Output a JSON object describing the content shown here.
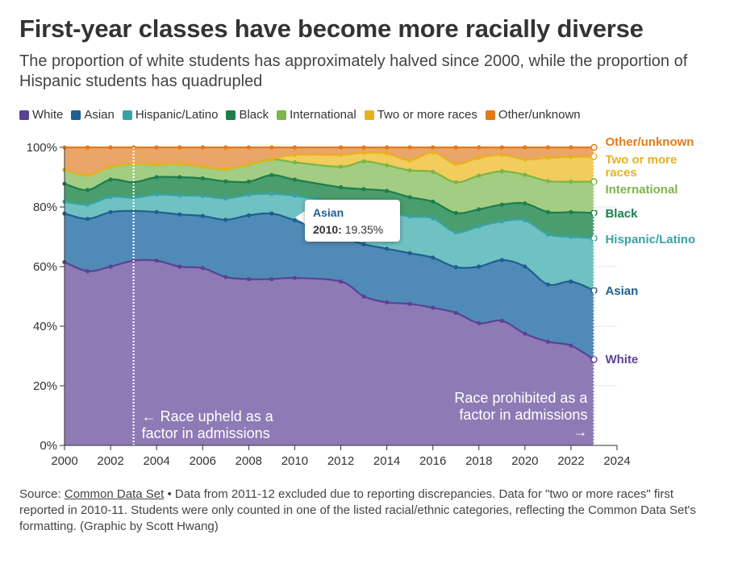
{
  "header": {
    "title": "First-year classes have become more racially diverse",
    "subtitle": "The proportion of white students has approximately halved since 2000, while the proportion of Hispanic students has quadrupled"
  },
  "tooltip": {
    "series": "Asian",
    "year_label": "2010:",
    "value_label": "19.35%"
  },
  "annotations": {
    "left": [
      "← Race upheld as a",
      "factor in admissions"
    ],
    "right": [
      "Race prohibited as a",
      "factor in admissions",
      "→"
    ]
  },
  "source": {
    "prefix": "Source:",
    "link": "Common Data Set",
    "text": "• Data from 2011-12 excluded due to reporting discrepancies. Data for \"two or more races\" first reported in 2010-11. Students were only counted in one of the listed racial/ethnic categories, reflecting the Common Data Set's formatting. (Graphic by Scott Hwang)"
  },
  "chart_data": {
    "type": "area",
    "stacked": true,
    "x": [
      2000,
      2001,
      2002,
      2003,
      2004,
      2005,
      2006,
      2007,
      2008,
      2009,
      2010,
      2012,
      2013,
      2014,
      2015,
      2016,
      2017,
      2018,
      2019,
      2020,
      2021,
      2022,
      2023
    ],
    "xlim": [
      2000,
      2024
    ],
    "xticks": [
      "2000",
      "2002",
      "2004",
      "2006",
      "2008",
      "2010",
      "2012",
      "2014",
      "2016",
      "2018",
      "2020",
      "2022",
      "2024"
    ],
    "ylim": [
      0,
      100
    ],
    "yticks": [
      "0%",
      "20%",
      "40%",
      "60%",
      "80%",
      "100%"
    ],
    "grid": true,
    "legend_position": "top",
    "cumulative_values": true,
    "series": [
      {
        "name": "White",
        "color": "#5b4296",
        "fill": "#8e7ab4",
        "values": [
          61.5,
          58.5,
          60,
          62,
          62,
          60,
          59.5,
          56.5,
          55.8,
          55.8,
          56.2,
          55,
          50,
          48,
          47.5,
          46.2,
          44.5,
          41,
          41.8,
          37.5,
          34.8,
          33.5,
          28.8
        ]
      },
      {
        "name": "Asian",
        "color": "#1f5f91",
        "fill": "#4f8bb6",
        "values": [
          77.8,
          76,
          78.3,
          78.7,
          78.3,
          77.5,
          77,
          75.7,
          77.2,
          77.8,
          75.5,
          70,
          67.5,
          66,
          64.5,
          63,
          59.8,
          60,
          62.2,
          60,
          54,
          55,
          52
        ]
      },
      {
        "name": "Hispanic/Latino",
        "color": "#36a3a8",
        "fill": "#70c1c1",
        "values": [
          81.8,
          80.8,
          83.4,
          83.1,
          84.2,
          83.9,
          83.7,
          82.9,
          84.1,
          84.4,
          83.8,
          81.2,
          79.5,
          78.5,
          76.8,
          76.2,
          71.5,
          73.5,
          75.2,
          75.5,
          70.8,
          70,
          69.5
        ]
      },
      {
        "name": "Black",
        "color": "#1e7d4c",
        "fill": "#4a9e6d",
        "values": [
          87.8,
          85.7,
          89.2,
          88.3,
          90,
          90,
          89.6,
          88.6,
          88.5,
          90.7,
          89.2,
          86.6,
          86,
          85.4,
          83.3,
          81.8,
          78,
          79.2,
          80.8,
          81.2,
          78.3,
          78.3,
          78
        ]
      },
      {
        "name": "International",
        "color": "#7cb548",
        "fill": "#a2cd82",
        "values": [
          92.5,
          90.7,
          93.5,
          94.5,
          94.2,
          94.5,
          93.5,
          92.7,
          94.3,
          96,
          95,
          93.5,
          95.3,
          94,
          92.3,
          91.8,
          88.3,
          90.5,
          92,
          90.8,
          88.7,
          88.5,
          88.5
        ]
      },
      {
        "name": "Two or more races",
        "color": "#e8b21e",
        "fill": "#f2cc5c",
        "values": [
          92.5,
          90.7,
          93.5,
          94.5,
          94.2,
          94.5,
          93.5,
          92.7,
          94.3,
          96,
          97.5,
          97.5,
          98.2,
          98,
          95.7,
          98.3,
          94.5,
          96.5,
          97.5,
          96,
          96.5,
          96.8,
          96.9
        ]
      },
      {
        "name": "Other/unknown",
        "color": "#e07b1a",
        "fill": "#eaa569",
        "values": [
          100,
          100,
          100,
          100,
          100,
          100,
          100,
          100,
          100,
          100,
          100,
          100,
          100,
          100,
          100,
          100,
          100,
          100,
          100,
          100,
          100,
          100,
          100
        ]
      }
    ],
    "end_labels": [
      {
        "lines": [
          "Other/unknown"
        ],
        "color": "#e07b1a"
      },
      {
        "lines": [
          "Two or more",
          "races"
        ],
        "color": "#e8b21e"
      },
      {
        "lines": [
          "International"
        ],
        "color": "#7cb548"
      },
      {
        "lines": [
          "Black"
        ],
        "color": "#1e7d4c"
      },
      {
        "lines": [
          "Hispanic/Latino"
        ],
        "color": "#36a3a8"
      },
      {
        "lines": [
          "Asian"
        ],
        "color": "#1f5f91"
      },
      {
        "lines": [
          "White"
        ],
        "color": "#5b4296"
      }
    ],
    "reference_lines": [
      2003,
      2023
    ]
  }
}
